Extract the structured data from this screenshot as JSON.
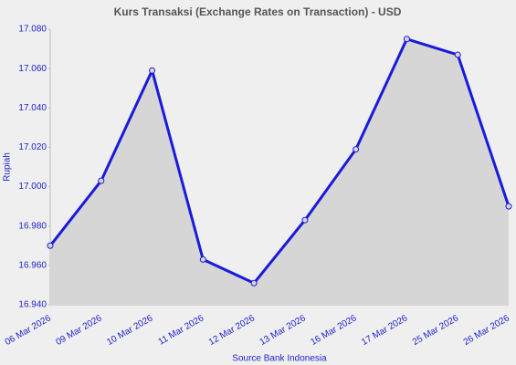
{
  "chart_data": {
    "type": "line",
    "title": "Kurs Transaksi (Exchange Rates on Transaction) - USD",
    "y_label": "Rupiah",
    "x_label": "Source Bank Indonesia",
    "categories": [
      "06 Mar 2026",
      "09 Mar 2026",
      "10 Mar 2026",
      "11 Mar 2026",
      "12 Mar 2026",
      "13 Mar 2026",
      "16 Mar 2026",
      "17 Mar 2026",
      "25 Mar 2026",
      "26 Mar 2026"
    ],
    "series": [
      {
        "name": "USD",
        "color": "#1a1adb",
        "area_color": "#d6d6d6",
        "values": [
          16970,
          17003,
          17059,
          16963,
          16951,
          16983,
          17019,
          17075,
          17067,
          16990
        ]
      }
    ],
    "ylim": [
      16940,
      17080
    ],
    "yticks": [
      {
        "value": 16940,
        "label": "16.940"
      },
      {
        "value": 16960,
        "label": "16.960"
      },
      {
        "value": 16980,
        "label": "16.980"
      },
      {
        "value": 17000,
        "label": "17.000"
      },
      {
        "value": 17020,
        "label": "17.020"
      },
      {
        "value": 17040,
        "label": "17.040"
      },
      {
        "value": 17060,
        "label": "17.060"
      },
      {
        "value": 17080,
        "label": "17.080"
      }
    ],
    "grid": false
  }
}
